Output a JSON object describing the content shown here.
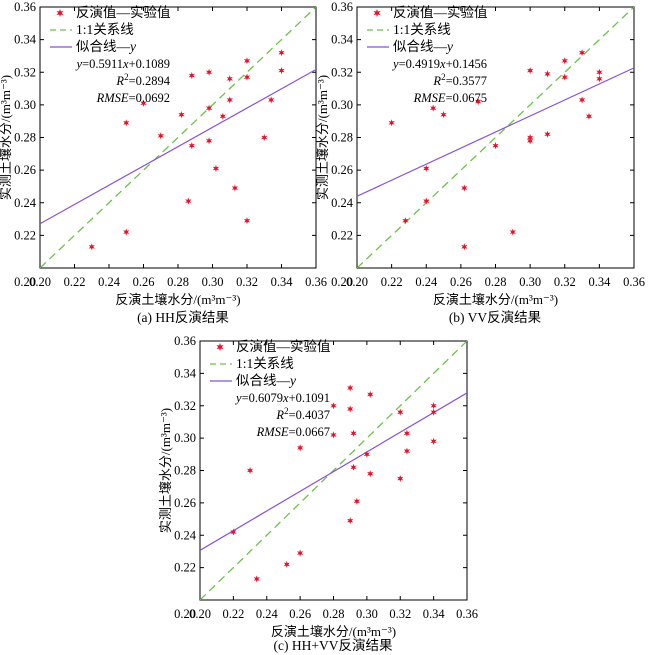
{
  "colors": {
    "points": "#e8102a",
    "one_to_one": "#6cc24a",
    "fit": "#8a4fd8",
    "axis": "#000000"
  },
  "chart_data": [
    {
      "type": "scatter",
      "caption": "(a) HH反演结果",
      "xlabel": "反演土壤水分/(m³m⁻³)",
      "ylabel": "实测土壤水分/(m³m⁻³)",
      "xlim": [
        0.2,
        0.36
      ],
      "ylim": [
        0.2,
        0.36
      ],
      "xticks": [
        "0.20",
        "0.22",
        "0.24",
        "0.26",
        "0.28",
        "0.30",
        "0.32",
        "0.34",
        "0.36"
      ],
      "yticks": [
        "0.20",
        "0.22",
        "0.24",
        "0.26",
        "0.28",
        "0.30",
        "0.32",
        "0.34",
        "0.36"
      ],
      "legend": {
        "points_label": "反演值—实验值",
        "one_to_one_label": "1:1关系线",
        "fit_label": "似合线—y",
        "equation": "y=0.5911x+0.1089",
        "r2": "R²=0.2894",
        "rmse": "RMSE=0.0692"
      },
      "fit": {
        "slope": 0.5911,
        "intercept": 0.1089
      },
      "points": [
        {
          "x": 0.23,
          "y": 0.213
        },
        {
          "x": 0.25,
          "y": 0.222
        },
        {
          "x": 0.25,
          "y": 0.289
        },
        {
          "x": 0.26,
          "y": 0.301
        },
        {
          "x": 0.27,
          "y": 0.281
        },
        {
          "x": 0.282,
          "y": 0.294
        },
        {
          "x": 0.286,
          "y": 0.241
        },
        {
          "x": 0.288,
          "y": 0.275
        },
        {
          "x": 0.288,
          "y": 0.318
        },
        {
          "x": 0.298,
          "y": 0.32
        },
        {
          "x": 0.298,
          "y": 0.298
        },
        {
          "x": 0.298,
          "y": 0.278
        },
        {
          "x": 0.302,
          "y": 0.261
        },
        {
          "x": 0.306,
          "y": 0.293
        },
        {
          "x": 0.31,
          "y": 0.303
        },
        {
          "x": 0.31,
          "y": 0.316
        },
        {
          "x": 0.313,
          "y": 0.249
        },
        {
          "x": 0.32,
          "y": 0.327
        },
        {
          "x": 0.32,
          "y": 0.317
        },
        {
          "x": 0.32,
          "y": 0.229
        },
        {
          "x": 0.33,
          "y": 0.28
        },
        {
          "x": 0.334,
          "y": 0.303
        },
        {
          "x": 0.34,
          "y": 0.332
        },
        {
          "x": 0.34,
          "y": 0.321
        }
      ]
    },
    {
      "type": "scatter",
      "caption": "(b) VV反演结果",
      "xlabel": "反演土壤水分/(m³m⁻³)",
      "ylabel": "实测土壤水分/(m³m⁻³)",
      "xlim": [
        0.2,
        0.36
      ],
      "ylim": [
        0.2,
        0.36
      ],
      "xticks": [
        "0.20",
        "0.22",
        "0.24",
        "0.26",
        "0.28",
        "0.30",
        "0.32",
        "0.34",
        "0.36"
      ],
      "yticks": [
        "0.20",
        "0.22",
        "0.24",
        "0.26",
        "0.28",
        "0.30",
        "0.32",
        "0.34",
        "0.36"
      ],
      "legend": {
        "points_label": "反演值—实验值",
        "one_to_one_label": "1:1关系线",
        "fit_label": "似合线—y",
        "equation": "y=0.4919x+0.1456",
        "r2": "R²=0.3577",
        "rmse": "RMSE=0.0675"
      },
      "fit": {
        "slope": 0.4919,
        "intercept": 0.1456
      },
      "points": [
        {
          "x": 0.22,
          "y": 0.289
        },
        {
          "x": 0.228,
          "y": 0.229
        },
        {
          "x": 0.24,
          "y": 0.261
        },
        {
          "x": 0.24,
          "y": 0.241
        },
        {
          "x": 0.244,
          "y": 0.298
        },
        {
          "x": 0.25,
          "y": 0.294
        },
        {
          "x": 0.262,
          "y": 0.249
        },
        {
          "x": 0.262,
          "y": 0.213
        },
        {
          "x": 0.27,
          "y": 0.302
        },
        {
          "x": 0.28,
          "y": 0.275
        },
        {
          "x": 0.29,
          "y": 0.222
        },
        {
          "x": 0.3,
          "y": 0.321
        },
        {
          "x": 0.3,
          "y": 0.28
        },
        {
          "x": 0.3,
          "y": 0.278
        },
        {
          "x": 0.31,
          "y": 0.319
        },
        {
          "x": 0.31,
          "y": 0.282
        },
        {
          "x": 0.32,
          "y": 0.327
        },
        {
          "x": 0.32,
          "y": 0.317
        },
        {
          "x": 0.33,
          "y": 0.332
        },
        {
          "x": 0.33,
          "y": 0.303
        },
        {
          "x": 0.334,
          "y": 0.293
        },
        {
          "x": 0.34,
          "y": 0.32
        },
        {
          "x": 0.34,
          "y": 0.316
        }
      ]
    },
    {
      "type": "scatter",
      "caption": "(c) HH+VV反演结果",
      "xlabel": "反演土壤水分/(m³m⁻³)",
      "ylabel": "实测土壤水分/(m³m⁻³)",
      "xlim": [
        0.2,
        0.36
      ],
      "ylim": [
        0.2,
        0.36
      ],
      "xticks": [
        "0.20",
        "0.22",
        "0.24",
        "0.26",
        "0.28",
        "0.30",
        "0.32",
        "0.34",
        "0.36"
      ],
      "yticks": [
        "0.20",
        "0.22",
        "0.24",
        "0.26",
        "0.28",
        "0.30",
        "0.32",
        "0.34",
        "0.36"
      ],
      "legend": {
        "points_label": "反演值—实验值",
        "one_to_one_label": "1:1关系线",
        "fit_label": "似合线—y",
        "equation": "y=0.6079x+0.1091",
        "r2": "R²=0.4037",
        "rmse": "RMSE=0.0667"
      },
      "fit": {
        "slope": 0.6079,
        "intercept": 0.1091
      },
      "points": [
        {
          "x": 0.22,
          "y": 0.242
        },
        {
          "x": 0.23,
          "y": 0.28
        },
        {
          "x": 0.234,
          "y": 0.213
        },
        {
          "x": 0.252,
          "y": 0.222
        },
        {
          "x": 0.26,
          "y": 0.229
        },
        {
          "x": 0.26,
          "y": 0.294
        },
        {
          "x": 0.28,
          "y": 0.32
        },
        {
          "x": 0.28,
          "y": 0.302
        },
        {
          "x": 0.29,
          "y": 0.331
        },
        {
          "x": 0.29,
          "y": 0.318
        },
        {
          "x": 0.29,
          "y": 0.249
        },
        {
          "x": 0.292,
          "y": 0.303
        },
        {
          "x": 0.292,
          "y": 0.282
        },
        {
          "x": 0.294,
          "y": 0.261
        },
        {
          "x": 0.3,
          "y": 0.29
        },
        {
          "x": 0.302,
          "y": 0.278
        },
        {
          "x": 0.302,
          "y": 0.327
        },
        {
          "x": 0.32,
          "y": 0.316
        },
        {
          "x": 0.32,
          "y": 0.275
        },
        {
          "x": 0.324,
          "y": 0.303
        },
        {
          "x": 0.324,
          "y": 0.292
        },
        {
          "x": 0.34,
          "y": 0.32
        },
        {
          "x": 0.34,
          "y": 0.316
        },
        {
          "x": 0.34,
          "y": 0.298
        }
      ]
    }
  ]
}
